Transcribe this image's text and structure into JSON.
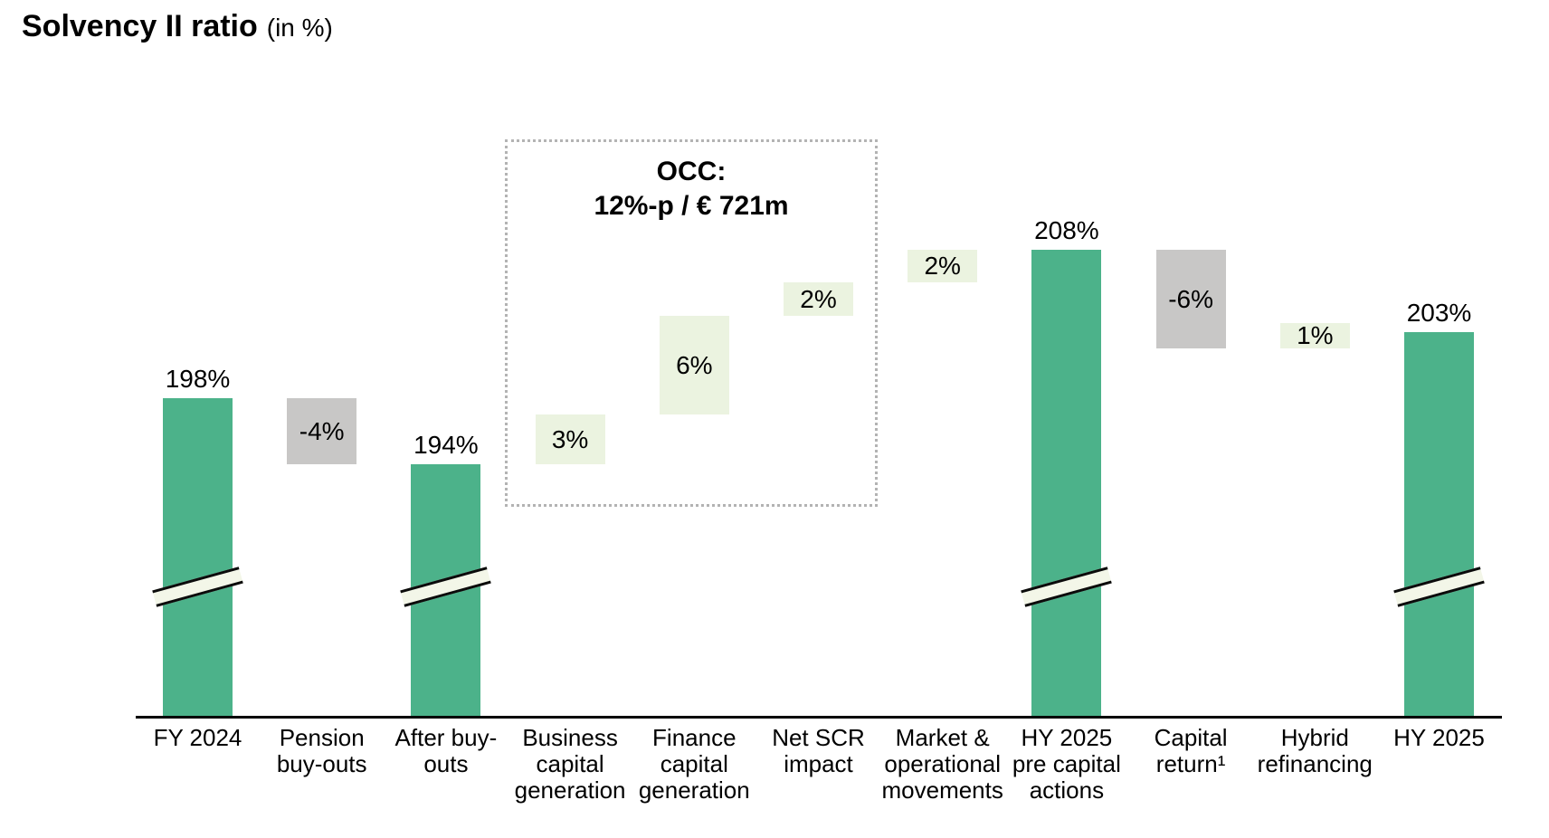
{
  "header": {
    "title": "Solvency II ratio",
    "subtitle": "(in %)"
  },
  "chart_data": {
    "type": "bar",
    "subtype": "waterfall",
    "title": "Solvency II ratio",
    "subtitle": "(in %)",
    "unit": "%",
    "categories": [
      "FY 2024",
      "Pension buy-outs",
      "After buy-outs",
      "Business capital generation",
      "Finance capital generation",
      "Net SCR impact",
      "Market & operational movements",
      "HY 2025 pre capital actions",
      "Capital return¹",
      "Hybrid refinancing",
      "HY 2025"
    ],
    "bars": [
      {
        "label": "FY 2024",
        "type": "total",
        "value": 198,
        "display": "198%",
        "color_key": "total",
        "axis_break": true
      },
      {
        "label": "Pension buy-outs",
        "type": "delta",
        "value": -4,
        "display": "-4%",
        "color_key": "negative",
        "axis_break": false
      },
      {
        "label": "After buy-outs",
        "type": "total",
        "value": 194,
        "display": "194%",
        "color_key": "total",
        "axis_break": true
      },
      {
        "label": "Business capital generation",
        "type": "delta",
        "value": 3,
        "display": "3%",
        "color_key": "positive",
        "axis_break": false
      },
      {
        "label": "Finance capital generation",
        "type": "delta",
        "value": 6,
        "display": "6%",
        "color_key": "positive",
        "axis_break": false
      },
      {
        "label": "Net SCR impact",
        "type": "delta",
        "value": 2,
        "display": "2%",
        "color_key": "positive",
        "axis_break": false
      },
      {
        "label": "Market & operational movements",
        "type": "delta",
        "value": 2,
        "display": "2%",
        "color_key": "positive",
        "axis_break": false
      },
      {
        "label": "HY 2025 pre capital actions",
        "type": "total",
        "value": 208,
        "display": "208%",
        "color_key": "total",
        "axis_break": true
      },
      {
        "label": "Capital return¹",
        "type": "delta",
        "value": -6,
        "display": "-6%",
        "color_key": "negative",
        "axis_break": false
      },
      {
        "label": "Hybrid refinancing",
        "type": "delta",
        "value": 1,
        "display": "1%",
        "color_key": "positive",
        "axis_break": false
      },
      {
        "label": "HY 2025",
        "type": "total",
        "value": 203,
        "display": "203%",
        "color_key": "total",
        "axis_break": true
      }
    ],
    "annotation": {
      "line1": "OCC:",
      "line2": "12%-p / € 721m",
      "covers": [
        "Business capital generation",
        "Finance capital generation",
        "Net SCR impact"
      ]
    },
    "colors": {
      "total": "#4cb28a",
      "positive": "#ebf3e0",
      "negative": "#c8c7c6",
      "break_fill": "#f3f6e8",
      "annotation_border": "#b3b3b3",
      "axis": "#000000",
      "text": "#000000"
    },
    "layout_hints": {
      "legend": "none",
      "grid": "off",
      "axis_break_on_totals": true,
      "value_labels": "totals above bars, deltas inside bars"
    }
  }
}
